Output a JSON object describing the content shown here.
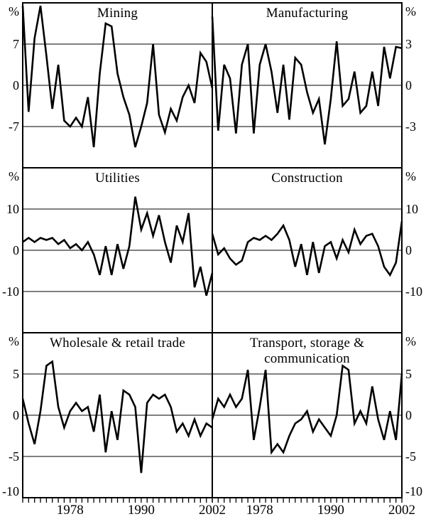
{
  "figure": {
    "background": "#ffffff",
    "line_color": "#000000",
    "frame_color": "#000000"
  },
  "x_years": [
    1970,
    1971,
    1972,
    1973,
    1974,
    1975,
    1976,
    1977,
    1978,
    1979,
    1980,
    1981,
    1982,
    1983,
    1984,
    1985,
    1986,
    1987,
    1988,
    1989,
    1990,
    1991,
    1992,
    1993,
    1994,
    1995,
    1996,
    1997,
    1998,
    1999,
    2000,
    2001,
    2002
  ],
  "x_tick_labels": [
    "1978",
    "1990",
    "2002"
  ],
  "chart_data": [
    {
      "type": "line",
      "title": "Mining",
      "unit": "%",
      "axis_side": "left",
      "ylim": [
        -14,
        14
      ],
      "yticks": [
        7,
        0,
        -7
      ],
      "values": [
        13.5,
        -4.5,
        8,
        13.5,
        5,
        -4,
        3.5,
        -6,
        -7,
        -5.5,
        -7,
        -2,
        -10.5,
        2,
        10.5,
        10,
        2,
        -2,
        -5,
        -10.5,
        -7,
        -3,
        7,
        -5,
        -8,
        -4,
        -6,
        -2,
        0,
        -3,
        5.5,
        4,
        -0.5
      ]
    },
    {
      "type": "line",
      "title": "Manufacturing",
      "unit": "%",
      "axis_side": "right",
      "ylim": [
        -6,
        6
      ],
      "yticks": [
        3,
        0,
        -3
      ],
      "values": [
        5,
        -3.3,
        1.5,
        0.5,
        -3.5,
        1.5,
        3,
        -3.5,
        1.5,
        3,
        1,
        -2,
        1.5,
        -2.5,
        2,
        1.5,
        -0.5,
        -2,
        -1,
        -4.3,
        -1,
        3.2,
        -1.5,
        -1,
        1,
        -2,
        -1.5,
        1,
        -1.5,
        2.8,
        0.5,
        2.8,
        2.7
      ]
    },
    {
      "type": "line",
      "title": "Utilities",
      "unit": "%",
      "axis_side": "left",
      "ylim": [
        -20,
        20
      ],
      "yticks": [
        10,
        0,
        -10
      ],
      "values": [
        2,
        3,
        2,
        3,
        2.5,
        3,
        1.5,
        2.5,
        0.5,
        1.5,
        0,
        2,
        -1,
        -6,
        1,
        -6,
        1.5,
        -4.5,
        1,
        13,
        5,
        9,
        3.5,
        8.5,
        2,
        -3,
        6,
        2,
        9,
        -9,
        -4,
        -11,
        -5.5
      ]
    },
    {
      "type": "line",
      "title": "Construction",
      "unit": "%",
      "axis_side": "right",
      "ylim": [
        -20,
        20
      ],
      "yticks": [
        10,
        0,
        -10
      ],
      "values": [
        4,
        -1,
        0.5,
        -2,
        -3.5,
        -2.5,
        2,
        3,
        2.5,
        3.5,
        2.5,
        4,
        6,
        2.5,
        -4,
        1.5,
        -6,
        2,
        -5.5,
        1,
        2,
        -2,
        2.5,
        -0.5,
        5,
        1.5,
        3.5,
        4,
        1,
        -4,
        -6,
        -3,
        7
      ]
    },
    {
      "type": "line",
      "title": "Wholesale & retail trade",
      "unit": "%",
      "axis_side": "left",
      "ylim": [
        -10,
        10
      ],
      "yticks": [
        5,
        0,
        -5,
        -10
      ],
      "values": [
        2,
        -1,
        -3.5,
        0.5,
        6,
        6.5,
        1,
        -1.5,
        0.5,
        1.5,
        0.5,
        1,
        -2,
        2.5,
        -4.5,
        0.5,
        -3,
        3,
        2.5,
        1,
        -7,
        1.5,
        2.5,
        2,
        2.5,
        1,
        -2,
        -1,
        -2.5,
        -0.5,
        -2.5,
        -1,
        -1.5
      ]
    },
    {
      "type": "line",
      "title": "Transport, storage & communication",
      "unit": "%",
      "axis_side": "right",
      "ylim": [
        -10,
        10
      ],
      "yticks": [
        5,
        0,
        -5,
        -10
      ],
      "values": [
        -0.5,
        2,
        1,
        2.5,
        1,
        2,
        5.5,
        -3,
        1,
        5.5,
        -4.5,
        -3.5,
        -4.5,
        -2.5,
        -1,
        -0.5,
        0.5,
        -2,
        -0.5,
        -1.5,
        -2.5,
        0,
        6,
        5.5,
        -1,
        0.5,
        -1,
        3.5,
        -0.5,
        -3,
        0.5,
        -3,
        5
      ]
    }
  ]
}
